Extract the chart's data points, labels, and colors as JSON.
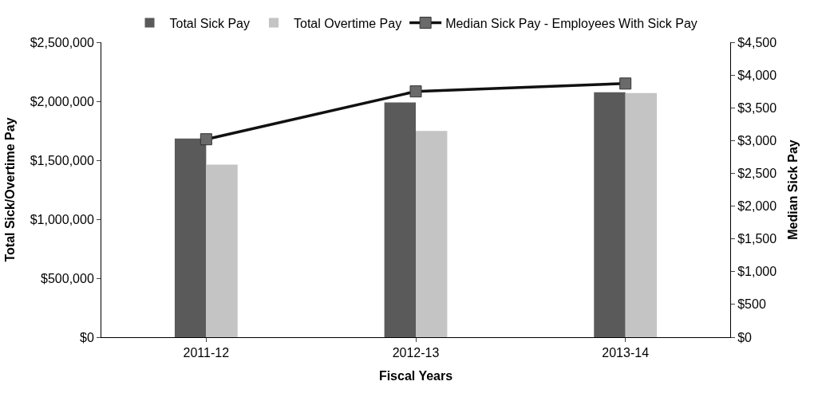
{
  "chart_data": {
    "type": "bar",
    "xlabel": "Fiscal Years",
    "ylabel": "Total Sick/Overtime Pay",
    "y2label": "Median Sick Pay",
    "categories": [
      "2011-12",
      "2012-13",
      "2013-14"
    ],
    "series": [
      {
        "name": "Total Sick Pay",
        "color": "#5a5a5a",
        "values": [
          1684000,
          1990000,
          2076000
        ]
      },
      {
        "name": "Total Overtime Pay",
        "color": "#c4c4c4",
        "values": [
          1462000,
          1749000,
          2070000
        ]
      },
      {
        "name": "Median Sick Pay - Employees With Sick Pay",
        "type": "line",
        "axis": "y2",
        "color": "#111111",
        "marker": "square",
        "values": [
          3020,
          3750,
          3870
        ]
      }
    ],
    "ylim": [
      0,
      2500000
    ],
    "yticks": [
      {
        "value": 0,
        "label": "$0"
      },
      {
        "value": 500000,
        "label": "$500,000"
      },
      {
        "value": 1000000,
        "label": "$1,000,000"
      },
      {
        "value": 1500000,
        "label": "$1,500,000"
      },
      {
        "value": 2000000,
        "label": "$2,000,000"
      },
      {
        "value": 2500000,
        "label": "$2,500,000"
      }
    ],
    "y2lim": [
      0,
      4500
    ],
    "y2ticks": [
      {
        "value": 0,
        "label": "$0"
      },
      {
        "value": 500,
        "label": "$500"
      },
      {
        "value": 1000,
        "label": "$1,000"
      },
      {
        "value": 1500,
        "label": "$1,500"
      },
      {
        "value": 2000,
        "label": "$2,000"
      },
      {
        "value": 2500,
        "label": "$2,500"
      },
      {
        "value": 3000,
        "label": "$3,000"
      },
      {
        "value": 3500,
        "label": "$3,500"
      },
      {
        "value": 4000,
        "label": "$4,000"
      },
      {
        "value": 4500,
        "label": "$4,500"
      }
    ],
    "legend": "top"
  }
}
